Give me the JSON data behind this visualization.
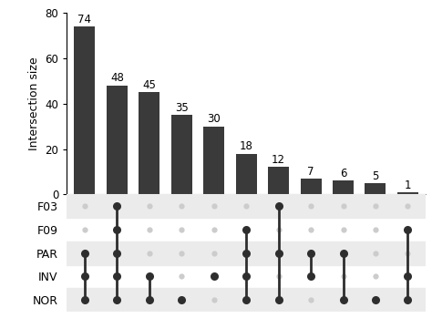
{
  "bar_values": [
    74,
    48,
    45,
    35,
    30,
    18,
    12,
    7,
    6,
    5,
    1
  ],
  "bar_color": "#3a3a3a",
  "dot_inactive_color": "#cccccc",
  "dot_active_color": "#2e2e2e",
  "sets": [
    "F03",
    "F09",
    "PAR",
    "INV",
    "NOR"
  ],
  "connections": [
    [
      false,
      false,
      true,
      true,
      true
    ],
    [
      true,
      true,
      true,
      true,
      true
    ],
    [
      false,
      false,
      false,
      true,
      true
    ],
    [
      false,
      false,
      false,
      false,
      true
    ],
    [
      false,
      false,
      false,
      true,
      false
    ],
    [
      false,
      true,
      true,
      true,
      true
    ],
    [
      true,
      false,
      true,
      false,
      true
    ],
    [
      false,
      false,
      true,
      true,
      false
    ],
    [
      false,
      false,
      true,
      false,
      true
    ],
    [
      false,
      false,
      false,
      false,
      true
    ],
    [
      false,
      true,
      false,
      true,
      true
    ]
  ],
  "ylabel": "Intersection size",
  "ylim": [
    0,
    80
  ],
  "yticks": [
    0,
    20,
    40,
    60,
    80
  ],
  "shaded_rows": [
    0,
    2,
    4
  ],
  "shade_color": "#ebebeb",
  "label_fontsize": 9,
  "bar_label_fontsize": 8.5
}
